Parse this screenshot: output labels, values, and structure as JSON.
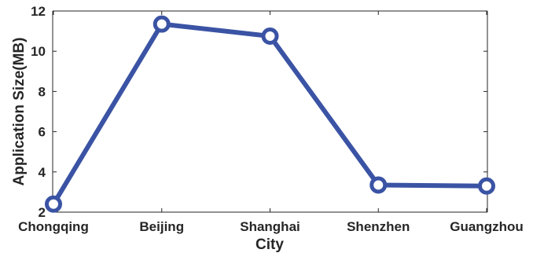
{
  "chart_data": {
    "type": "line",
    "categories": [
      "Chongqing",
      "Beijing",
      "Shanghai",
      "Shenzhen",
      "Guangzhou"
    ],
    "series": [
      {
        "values": [
          2.4,
          11.35,
          10.75,
          3.35,
          3.3
        ],
        "color": "#3a53a4",
        "marker": "circle"
      }
    ],
    "xlabel": "City",
    "ylabel": "Application Size(MB)",
    "ylim": [
      2,
      12
    ],
    "yticks": [
      "2",
      "4",
      "6",
      "8",
      "10",
      "12"
    ],
    "grid": false
  }
}
